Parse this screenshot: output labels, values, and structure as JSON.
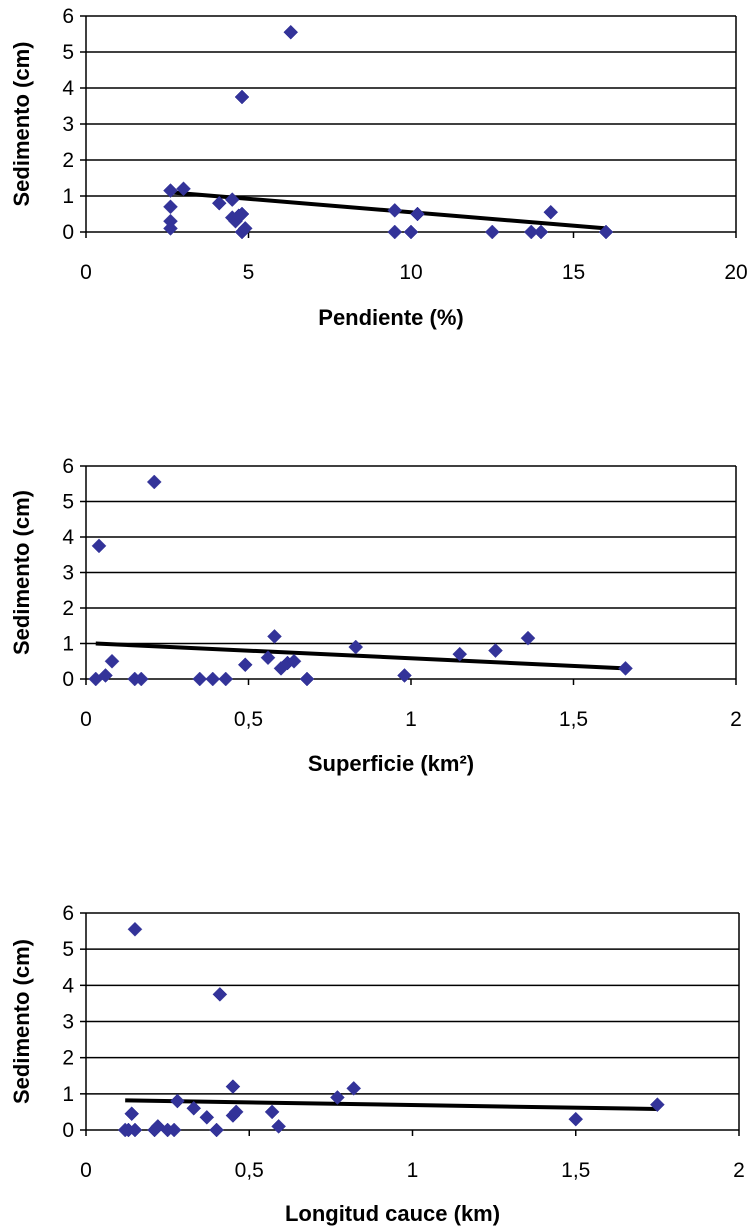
{
  "chart_data": [
    {
      "type": "scatter",
      "xlabel": "Pendiente (%)",
      "ylabel": "Sedimento (cm)",
      "xlim": [
        0,
        20
      ],
      "ylim": [
        0,
        6
      ],
      "xticks": [
        0,
        5,
        10,
        15,
        20
      ],
      "xtick_labels": [
        "0",
        "5",
        "10",
        "15",
        "20"
      ],
      "yticks": [
        0,
        1,
        2,
        3,
        4,
        5,
        6
      ],
      "ytick_labels": [
        "0",
        "1",
        "2",
        "3",
        "4",
        "5",
        "6"
      ],
      "grid": "horizontal",
      "marker_color": "#333399",
      "points": [
        [
          2.6,
          1.15
        ],
        [
          2.6,
          0.7
        ],
        [
          2.6,
          0.3
        ],
        [
          2.6,
          0.1
        ],
        [
          3.0,
          1.2
        ],
        [
          4.1,
          0.8
        ],
        [
          4.5,
          0.9
        ],
        [
          4.5,
          0.4
        ],
        [
          4.6,
          0.3
        ],
        [
          4.7,
          0.45
        ],
        [
          4.8,
          0.5
        ],
        [
          4.8,
          0.0
        ],
        [
          4.9,
          0.1
        ],
        [
          4.8,
          3.75
        ],
        [
          6.3,
          5.55
        ],
        [
          9.5,
          0.6
        ],
        [
          9.5,
          0.0
        ],
        [
          10.0,
          0.0
        ],
        [
          10.2,
          0.5
        ],
        [
          12.5,
          0.0
        ],
        [
          13.7,
          0.0
        ],
        [
          14.0,
          0.0
        ],
        [
          14.3,
          0.55
        ],
        [
          16.0,
          0.0
        ]
      ],
      "trendline": [
        [
          2.6,
          1.1
        ],
        [
          16.0,
          0.1
        ]
      ]
    },
    {
      "type": "scatter",
      "xlabel": "Superficie (km²)",
      "ylabel": "Sedimento (cm)",
      "xlim": [
        0,
        2
      ],
      "ylim": [
        0,
        6
      ],
      "xticks": [
        0,
        0.5,
        1,
        1.5,
        2
      ],
      "xtick_labels": [
        "0",
        "0,5",
        "1",
        "1,5",
        "2"
      ],
      "yticks": [
        0,
        1,
        2,
        3,
        4,
        5,
        6
      ],
      "ytick_labels": [
        "0",
        "1",
        "2",
        "3",
        "4",
        "5",
        "6"
      ],
      "grid": "horizontal",
      "marker_color": "#333399",
      "points": [
        [
          0.03,
          0.0
        ],
        [
          0.04,
          3.75
        ],
        [
          0.06,
          0.1
        ],
        [
          0.08,
          0.5
        ],
        [
          0.15,
          0.0
        ],
        [
          0.17,
          0.0
        ],
        [
          0.21,
          5.55
        ],
        [
          0.35,
          0.0
        ],
        [
          0.39,
          0.0
        ],
        [
          0.43,
          0.0
        ],
        [
          0.49,
          0.4
        ],
        [
          0.56,
          0.6
        ],
        [
          0.58,
          1.2
        ],
        [
          0.6,
          0.3
        ],
        [
          0.62,
          0.45
        ],
        [
          0.64,
          0.5
        ],
        [
          0.68,
          0.0
        ],
        [
          0.83,
          0.9
        ],
        [
          0.98,
          0.1
        ],
        [
          1.15,
          0.7
        ],
        [
          1.26,
          0.8
        ],
        [
          1.36,
          1.15
        ],
        [
          1.66,
          0.3
        ]
      ],
      "trendline": [
        [
          0.03,
          1.0
        ],
        [
          1.66,
          0.3
        ]
      ]
    },
    {
      "type": "scatter",
      "xlabel": "Longitud cauce (km)",
      "ylabel": "Sedimento (cm)",
      "xlim": [
        0,
        2
      ],
      "ylim": [
        0,
        6
      ],
      "xticks": [
        0,
        0.5,
        1,
        1.5,
        2
      ],
      "xtick_labels": [
        "0",
        "0,5",
        "1",
        "1,5",
        "2"
      ],
      "yticks": [
        0,
        1,
        2,
        3,
        4,
        5,
        6
      ],
      "ytick_labels": [
        "0",
        "1",
        "2",
        "3",
        "4",
        "5",
        "6"
      ],
      "grid": "horizontal",
      "marker_color": "#333399",
      "points": [
        [
          0.12,
          0.0
        ],
        [
          0.13,
          0.0
        ],
        [
          0.14,
          0.45
        ],
        [
          0.15,
          0.0
        ],
        [
          0.15,
          5.55
        ],
        [
          0.21,
          0.0
        ],
        [
          0.22,
          0.1
        ],
        [
          0.25,
          0.0
        ],
        [
          0.27,
          0.0
        ],
        [
          0.28,
          0.8
        ],
        [
          0.33,
          0.6
        ],
        [
          0.37,
          0.35
        ],
        [
          0.4,
          0.0
        ],
        [
          0.41,
          3.75
        ],
        [
          0.45,
          1.2
        ],
        [
          0.45,
          0.4
        ],
        [
          0.46,
          0.5
        ],
        [
          0.57,
          0.5
        ],
        [
          0.59,
          0.1
        ],
        [
          0.77,
          0.9
        ],
        [
          0.82,
          1.15
        ],
        [
          1.5,
          0.3
        ],
        [
          1.75,
          0.7
        ]
      ],
      "trendline": [
        [
          0.12,
          0.82
        ],
        [
          1.75,
          0.58
        ]
      ]
    }
  ]
}
